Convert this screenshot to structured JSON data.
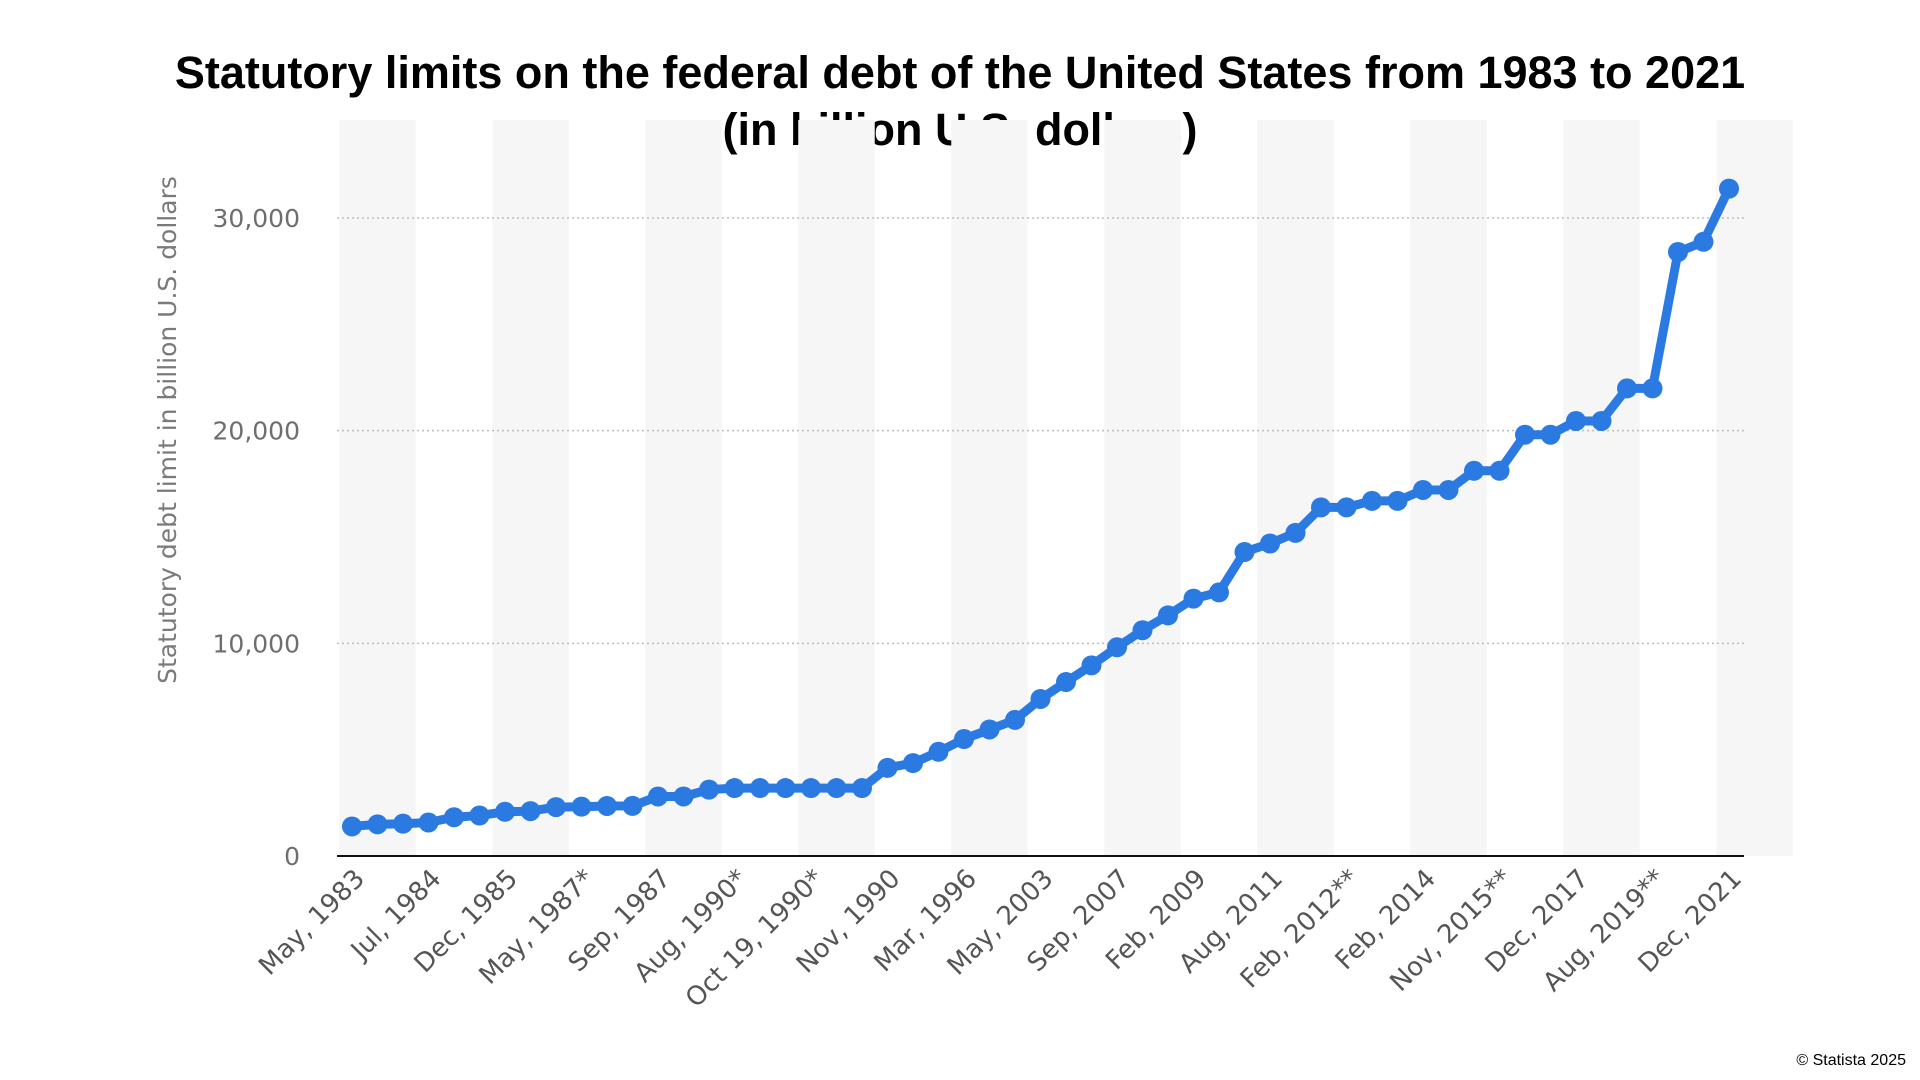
{
  "chart_data": {
    "type": "line",
    "title": "Statutory limits on the federal debt of the United States from 1983 to 2021",
    "subtitle": "(in billion U.S. dollars)",
    "xlabel": "",
    "ylabel": "Statutory debt limit in billion U.S. dollars",
    "ylim": [
      0,
      33000
    ],
    "yticks": [
      0,
      10000,
      20000,
      30000
    ],
    "ytick_labels": [
      "0",
      "10,000",
      "20,000",
      "30,000"
    ],
    "grid": "horizontal dotted",
    "legend": "none",
    "series_color": "#2a7ae2",
    "x_labels": [
      {
        "index": 0,
        "label": "May, 1983"
      },
      {
        "index": 3,
        "label": "Jul, 1984"
      },
      {
        "index": 6,
        "label": "Dec, 1985"
      },
      {
        "index": 9,
        "label": "May, 1987*"
      },
      {
        "index": 12,
        "label": "Sep, 1987"
      },
      {
        "index": 15,
        "label": "Aug, 1990*"
      },
      {
        "index": 18,
        "label": "Oct 19, 1990*"
      },
      {
        "index": 21,
        "label": "Nov, 1990"
      },
      {
        "index": 24,
        "label": "Mar, 1996"
      },
      {
        "index": 27,
        "label": "May, 2003"
      },
      {
        "index": 30,
        "label": "Sep, 2007"
      },
      {
        "index": 33,
        "label": "Feb, 2009"
      },
      {
        "index": 36,
        "label": "Aug, 2011"
      },
      {
        "index": 39,
        "label": "Feb, 2012**"
      },
      {
        "index": 42,
        "label": "Feb, 2014"
      },
      {
        "index": 45,
        "label": "Nov, 2015**"
      },
      {
        "index": 48,
        "label": "Dec, 2017"
      },
      {
        "index": 51,
        "label": "Aug, 2019**"
      },
      {
        "index": 54,
        "label": "Dec, 2021"
      }
    ],
    "values": [
      1390,
      1490,
      1520,
      1573,
      1823,
      1904,
      2079,
      2111,
      2300,
      2320,
      2352,
      2355,
      2800,
      2800,
      3123,
      3195,
      3195,
      3195,
      3195,
      3195,
      3195,
      4145,
      4370,
      4900,
      5500,
      5950,
      6400,
      7384,
      8184,
      8965,
      9815,
      10615,
      11315,
      12104,
      12394,
      14294,
      14694,
      15194,
      16394,
      16394,
      16699,
      16699,
      17212,
      17212,
      18113,
      18113,
      19809,
      19809,
      20456,
      20456,
      21988,
      21988,
      28401,
      28881,
      31381
    ]
  },
  "copyright": "© Statista 2025"
}
